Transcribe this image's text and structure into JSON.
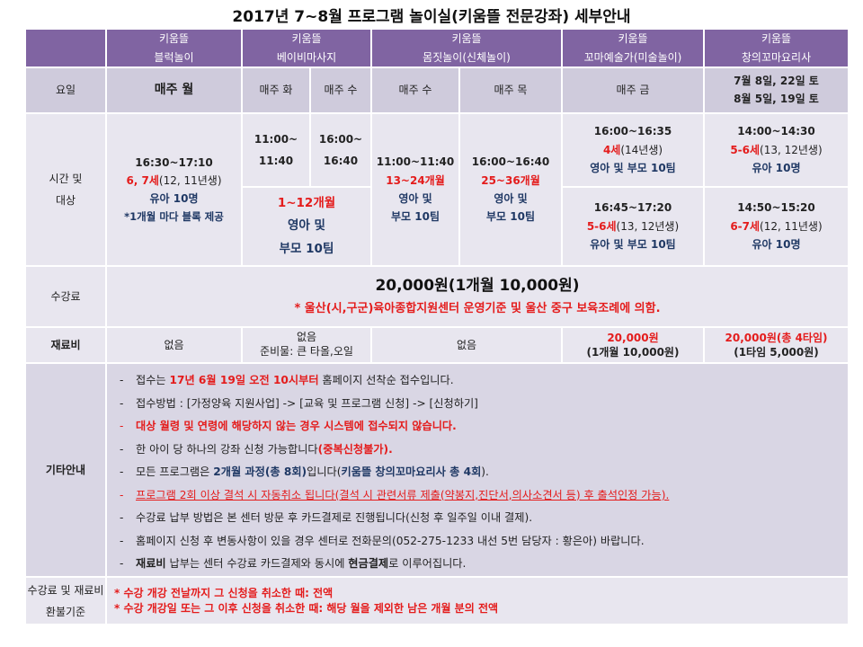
{
  "title": "2017년 7~8월 프로그램 놀이실(키움뜰 전문강좌) 세부안내",
  "header": {
    "programs": [
      {
        "line1": "키움뜰",
        "line2": "블럭놀이"
      },
      {
        "line1": "키움뜰",
        "line2": "베이비마사지"
      },
      {
        "line1": "키움뜰",
        "line2": "몸짓놀이(신체놀이)"
      },
      {
        "line1": "키움뜰",
        "line2": "꼬마예술가(미술놀이)"
      },
      {
        "line1": "키움뜰",
        "line2": "창의꼬마요리사"
      }
    ]
  },
  "day_row": {
    "label": "요일",
    "block": "매주 월",
    "baby_a": "매주 화",
    "baby_b": "매주 수",
    "body_a": "매주 수",
    "body_b": "매주 목",
    "art": "매주 금",
    "cook_line1": "7월 8일, 22일 토",
    "cook_line2": "8월 5일, 19일 토"
  },
  "time_row": {
    "label_line1": "시간 및",
    "label_line2": "대상",
    "block": {
      "time": "16:30~17:10",
      "age": "6, 7세",
      "born": "(12, 11년생)",
      "target": "유아 10명",
      "note": "*1개월 마다 블록 제공"
    },
    "baby_a": {
      "time1": "11:00~",
      "time2": "11:40"
    },
    "baby_b": {
      "time1": "16:00~",
      "time2": "16:40"
    },
    "baby_common": {
      "age": "1~12개월",
      "target1": "영아 및",
      "target2": "부모 10팀"
    },
    "body_a": {
      "time": "11:00~11:40",
      "age": "13~24개월",
      "target1": "영아 및",
      "target2": "부모 10팀"
    },
    "body_b": {
      "time": "16:00~16:40",
      "age": "25~36개월",
      "target1": "영아 및",
      "target2": "부모 10팀"
    },
    "art_1": {
      "time": "16:00~16:35",
      "age": "4세",
      "born": "(14년생)",
      "target": "영아 및 부모 10팀"
    },
    "art_2": {
      "time": "16:45~17:20",
      "age": "5-6세",
      "born": "(13, 12년생)",
      "target": "유아 및 부모 10팀"
    },
    "cook_1": {
      "time": "14:00~14:30",
      "age": "5-6세",
      "born": "(13, 12년생)",
      "target": "유아 10명"
    },
    "cook_2": {
      "time": "14:50~15:20",
      "age": "6-7세",
      "born": "(12, 11년생)",
      "target": "유아 10명"
    }
  },
  "fee_row": {
    "label": "수강료",
    "amount": "20,000원(1개월 10,000원)",
    "note": "* 울산(시,구군)육아종합지원센터 운영기준 및 울산 중구 보육조례에 의함."
  },
  "material_row": {
    "label": "재료비",
    "block": "없음",
    "baby_line1": "없음",
    "baby_line2": "준비물: 큰 타올,오일",
    "body": "없음",
    "art_line1": "20,000원",
    "art_line2": "(1개월 10,000원)",
    "cook_line1": "20,000원(총 4타임)",
    "cook_line2": "(1타임 5,000원)"
  },
  "notes_row": {
    "label": "기타안내",
    "dash": "-",
    "lines": [
      [
        {
          "t": "접수는 "
        },
        {
          "t": "17년 6월 19일 오전 10시부터",
          "c": "red",
          "b": true
        },
        {
          "t": " 홈페이지 선착순 접수입니다."
        }
      ],
      [
        {
          "t": "접수방법 : [가정양육 지원사업] -> [교육 및 프로그램 신청] -> [신청하기]"
        }
      ],
      [
        {
          "t": "대상 월령 및 연령에 해당하지 않는 경우 시스템에 접수되지 않습니다.",
          "c": "red",
          "b": true
        }
      ],
      [
        {
          "t": "한 아이 당 하나의 강좌 신청 가능합니다"
        },
        {
          "t": "(중복신청불가).",
          "c": "red",
          "b": true
        }
      ],
      [
        {
          "t": "모든 프로그램은 "
        },
        {
          "t": "2개월 과정(총 8회)",
          "c": "navy",
          "b": true
        },
        {
          "t": "입니다("
        },
        {
          "t": "키움뜰 창의꼬마요리사 총 4회",
          "c": "navy",
          "b": true
        },
        {
          "t": ")."
        }
      ],
      [
        {
          "t": "프로그램 2회 이상 결석 시 자동취소 됩니다(결석 시 관련서류 제출(약봉지,진단서,의사소견서 등) 후 출석인정 가능).",
          "c": "red",
          "u": true
        }
      ],
      [
        {
          "t": "수강료 납부 방법은 본 센터 방문 후 카드결제로 진행됩니다(신청 후 일주일 이내 결제)."
        }
      ],
      [
        {
          "t": "홈페이지 신청 후 변동사항이 있을 경우 센터로 전화문의(052-275-1233 내선 5번 담당자 : 황은아) 바랍니다."
        }
      ],
      [
        {
          "t": "재료비",
          "b": true
        },
        {
          "t": " 납부는 센터 수강료 카드결제와 동시에 "
        },
        {
          "t": "현금결제",
          "b": true
        },
        {
          "t": "로 이루어집니다."
        }
      ]
    ]
  },
  "refund_row": {
    "label_line1": "수강료 및 재료비",
    "label_line2": "환불기준",
    "line1": "* 수강 개강 전날까지 그 신청을 취소한 때: 전액",
    "line2": "* 수강 개강일 또는 그 이후 신청을 취소한 때: 해당 월을 제외한 남은 개월 분의 전액"
  },
  "colors": {
    "header": "#8064a2",
    "day_row": "#cfcbdc",
    "body": "#e8e6ef",
    "notes": "#d9d6e4",
    "accent_red": "#e41c1c",
    "navy": "#1f3864"
  }
}
